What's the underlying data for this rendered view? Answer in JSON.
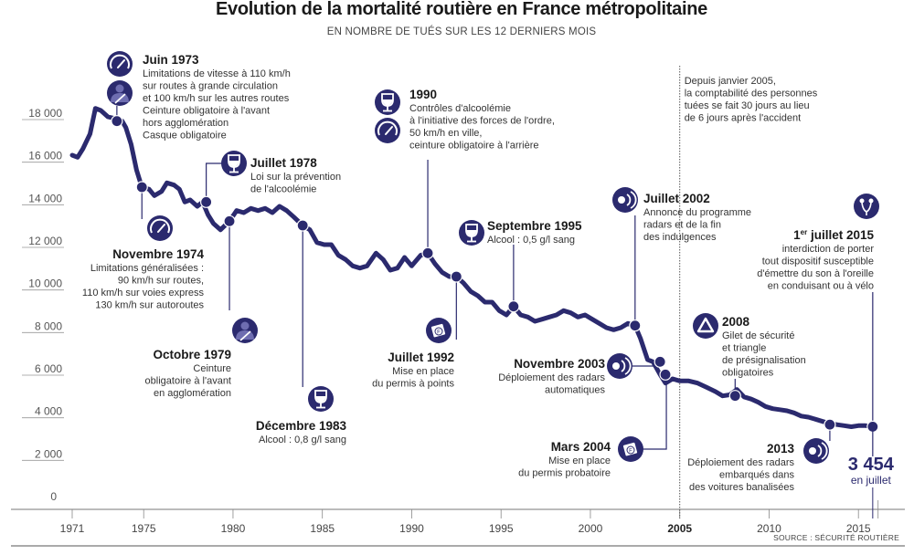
{
  "chart_data": {
    "type": "line",
    "title": "Evolution de la mortalité routière en France métropolitaine",
    "subtitle": "EN NOMBRE DE TUÉS SUR LES 12 DERNIERS MOIS",
    "xlabel": "",
    "ylabel": "",
    "xlim": [
      1970.5,
      2016.5
    ],
    "ylim": [
      0,
      18000
    ],
    "x_ticks": [
      "1971",
      "1975",
      "1980",
      "1985",
      "1990",
      "1995",
      "2000",
      "2005",
      "2010",
      "2015"
    ],
    "x_tick_values": [
      1971,
      1975,
      1980,
      1985,
      1990,
      1995,
      2000,
      2005,
      2010,
      2015
    ],
    "x_tick_bold": "2005",
    "y_ticks": [
      "0",
      "2 000",
      "4 000",
      "6 000",
      "8 000",
      "10 000",
      "12 000",
      "14 000",
      "16 000",
      "18 000"
    ],
    "y_tick_values": [
      0,
      2000,
      4000,
      6000,
      8000,
      10000,
      12000,
      14000,
      16000,
      18000
    ],
    "grid": false,
    "legend": "none",
    "series": [
      {
        "name": "Tués sur 12 mois glissants",
        "color": "#2b2a6e",
        "x": [
          1971.0,
          1971.3,
          1971.6,
          1972.0,
          1972.3,
          1972.6,
          1973.0,
          1973.5,
          1973.8,
          1974.0,
          1974.3,
          1974.6,
          1974.9,
          1975.3,
          1975.6,
          1976.0,
          1976.3,
          1976.7,
          1977.0,
          1977.3,
          1977.6,
          1978.0,
          1978.3,
          1978.6,
          1978.9,
          1979.3,
          1979.8,
          1980.2,
          1980.6,
          1981.0,
          1981.4,
          1981.8,
          1982.2,
          1982.6,
          1983.0,
          1983.4,
          1983.9,
          1984.3,
          1984.7,
          1985.1,
          1985.5,
          1985.9,
          1986.3,
          1986.7,
          1987.1,
          1987.5,
          1988.0,
          1988.4,
          1988.8,
          1989.2,
          1989.6,
          1990.0,
          1990.5,
          1990.9,
          1991.3,
          1991.7,
          1992.1,
          1992.5,
          1992.9,
          1993.3,
          1993.7,
          1994.1,
          1994.5,
          1994.9,
          1995.3,
          1995.7,
          1996.1,
          1996.5,
          1996.9,
          1997.3,
          1997.7,
          1998.1,
          1998.5,
          1998.9,
          1999.3,
          1999.7,
          2000.1,
          2000.5,
          2000.9,
          2001.3,
          2001.7,
          2002.1,
          2002.5,
          2002.8,
          2003.2,
          2003.5,
          2003.9,
          2004.2,
          2004.6,
          2005.0,
          2005.5,
          2006.0,
          2006.5,
          2007.0,
          2007.4,
          2007.8,
          2008.2,
          2008.6,
          2009.0,
          2009.4,
          2009.8,
          2010.2,
          2010.6,
          2011.0,
          2011.4,
          2011.8,
          2012.2,
          2012.6,
          2013.0,
          2013.4,
          2013.8,
          2014.2,
          2014.6,
          2015.0,
          2015.4,
          2015.8
        ],
        "y": [
          16200,
          16100,
          16500,
          17200,
          18400,
          18300,
          18000,
          17900,
          17800,
          17500,
          16700,
          15500,
          14700,
          14600,
          14300,
          14500,
          14900,
          14800,
          14600,
          14000,
          14100,
          13800,
          14000,
          13400,
          13000,
          12700,
          13100,
          13600,
          13500,
          13700,
          13600,
          13700,
          13500,
          13800,
          13600,
          13300,
          12900,
          12700,
          12100,
          12000,
          12000,
          11500,
          11300,
          11000,
          10900,
          11000,
          11600,
          11300,
          10800,
          10900,
          11400,
          11000,
          11500,
          11600,
          11100,
          10700,
          10500,
          10500,
          10200,
          9800,
          9600,
          9300,
          9300,
          8900,
          8700,
          9100,
          8700,
          8600,
          8400,
          8500,
          8600,
          8700,
          8900,
          8800,
          8600,
          8700,
          8500,
          8300,
          8100,
          8000,
          8100,
          8300,
          8200,
          7600,
          6600,
          6500,
          5900,
          5500,
          5700,
          5600,
          5600,
          5500,
          5300,
          5100,
          4900,
          4950,
          5200,
          4850,
          4750,
          4600,
          4400,
          4300,
          4250,
          4200,
          4100,
          3950,
          3900,
          3800,
          3700,
          3600,
          3550,
          3500,
          3450,
          3500,
          3500,
          3454
        ]
      }
    ],
    "events": [
      {
        "id": "juin-1973",
        "year": 1973.5,
        "value": 17800,
        "title": "Juin 1973",
        "lines": [
          "Limitations de vitesse à 110 km/h",
          "sur routes à grande circulation",
          "et 100 km/h sur les autres routes",
          "Ceinture obligatoire à l'avant",
          "hors agglomération",
          "Casque obligatoire"
        ],
        "icons": [
          "speedometer-icon",
          "seatbelt-icon"
        ]
      },
      {
        "id": "novembre-1974",
        "year": 1974.9,
        "value": 14700,
        "title": "Novembre 1974",
        "lines": [
          "Limitations généralisées :",
          "90 km/h sur routes,",
          "110 km/h sur voies express",
          "130 km/h sur autoroutes"
        ],
        "icons": [
          "speedometer-icon"
        ]
      },
      {
        "id": "juillet-1978",
        "year": 1978.5,
        "value": 14000,
        "title": "Juillet 1978",
        "lines": [
          "Loi sur la prévention",
          "de l'alcoolémie"
        ],
        "icons": [
          "wine-glass-icon"
        ]
      },
      {
        "id": "octobre-1979",
        "year": 1979.8,
        "value": 13100,
        "title": "Octobre 1979",
        "lines": [
          "Ceinture",
          "obligatoire à l'avant",
          "en agglomération"
        ],
        "icons": [
          "seatbelt-icon"
        ]
      },
      {
        "id": "decembre-1983",
        "year": 1983.9,
        "value": 12900,
        "title": "Décembre 1983",
        "lines": [
          "Alcool : 0,8 g/l sang"
        ],
        "icons": [
          "wine-glass-icon"
        ]
      },
      {
        "id": "1990",
        "year": 1990.9,
        "value": 11600,
        "title": "1990",
        "lines": [
          "Contrôles d'alcoolémie",
          "à l'initiative des forces de l'ordre,",
          "50 km/h en ville,",
          "ceinture obligatoire à l'arrière"
        ],
        "icons": [
          "wine-glass-icon",
          "speedometer-icon"
        ]
      },
      {
        "id": "juillet-1992",
        "year": 1992.5,
        "value": 10500,
        "title": "Juillet 1992",
        "lines": [
          "Mise en place",
          "du permis à points"
        ],
        "icons": [
          "license-icon"
        ]
      },
      {
        "id": "septembre-1995",
        "year": 1995.7,
        "value": 9100,
        "title": "Septembre 1995",
        "lines": [
          "Alcool : 0,5 g/l sang"
        ],
        "icons": [
          "wine-glass-icon"
        ]
      },
      {
        "id": "juillet-2002",
        "year": 2002.5,
        "value": 8200,
        "title": "Juillet 2002",
        "lines": [
          "Annonce du programme",
          "radars et de la fin",
          "des indulgences"
        ],
        "icons": [
          "radar-icon"
        ]
      },
      {
        "id": "novembre-2003",
        "year": 2003.9,
        "value": 6500,
        "title": "Novembre 2003",
        "lines": [
          "Déploiement des radars",
          "automatiques"
        ],
        "icons": [
          "radar-icon"
        ]
      },
      {
        "id": "mars-2004",
        "year": 2004.2,
        "value": 5900,
        "title": "Mars 2004",
        "lines": [
          "Mise en place",
          "du permis probatoire"
        ],
        "icons": [
          "license-icon"
        ]
      },
      {
        "id": "2008",
        "year": 2008.1,
        "value": 4900,
        "title": "2008",
        "lines": [
          "Gilet de sécurité",
          "et triangle",
          "de présignalisation",
          "obligatoires"
        ],
        "icons": [
          "warning-triangle-icon"
        ]
      },
      {
        "id": "2013",
        "year": 2013.4,
        "value": 3550,
        "title": "2013",
        "lines": [
          "Déploiement des radars",
          "embarqués dans",
          "des voitures banalisées"
        ],
        "icons": [
          "radar-icon"
        ]
      },
      {
        "id": "juillet-2015",
        "year": 2015.8,
        "value": 3454,
        "title": "1er juillet 2015",
        "lines": [
          "interdiction de porter",
          "tout dispositif susceptible",
          "d'émettre du son à l'oreille",
          "en conduisant ou à vélo"
        ],
        "icons": [
          "earphones-icon"
        ]
      }
    ],
    "annotations": {
      "methodology_note": [
        "Depuis janvier 2005,",
        "la comptabilité des personnes",
        "tuées se fait 30 jours au lieu",
        "de 6 jours après l'accident"
      ],
      "methodology_year": 2005,
      "final_value": "3 454",
      "final_label": "en juillet"
    },
    "source": "SOURCE : SÉCURITÉ ROUTIÈRE"
  },
  "colors": {
    "accent": "#2b2a6e",
    "icon_light": "#ffffff",
    "axis": "#666666"
  }
}
